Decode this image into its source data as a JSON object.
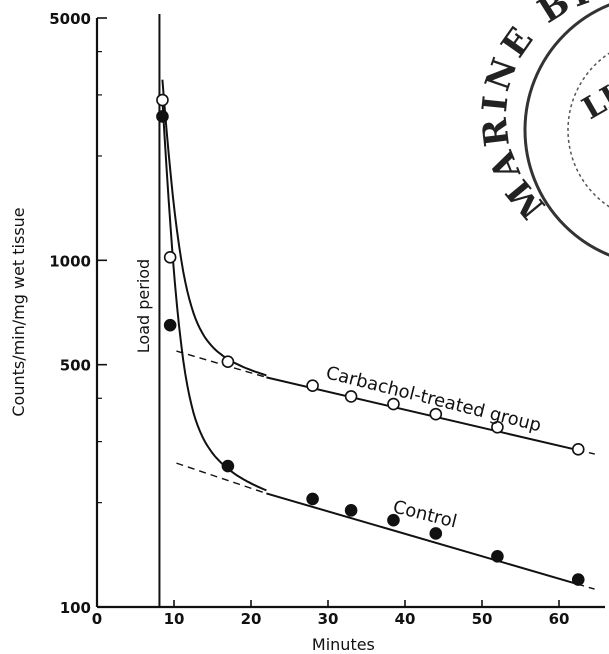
{
  "chart_data": {
    "type": "scatter",
    "title": "",
    "xlabel": "Minutes",
    "ylabel": "Counts/min/mg wet tissue",
    "x_ticks": [
      0,
      10,
      20,
      30,
      40,
      50,
      60
    ],
    "y_ticks": [
      100,
      500,
      1000,
      5000
    ],
    "xlim": [
      0,
      65
    ],
    "ylim": [
      100,
      5000
    ],
    "y_scale": "log",
    "grid": false,
    "annotations": {
      "load_period": "Load period",
      "load_period_x": 8.5
    },
    "series": [
      {
        "name": "Carbachol-treated group",
        "marker": "open-circle",
        "x": [
          8.5,
          9.5,
          17,
          28,
          33,
          38.5,
          44,
          52,
          62.5
        ],
        "y": [
          2900,
          1020,
          510,
          435,
          405,
          385,
          360,
          330,
          285
        ],
        "extrapolated_line": {
          "x": [
            8.5,
            65
          ],
          "y": [
            540,
            275
          ]
        }
      },
      {
        "name": "Control",
        "marker": "filled-circle",
        "x": [
          8.5,
          9.5,
          17,
          28,
          33,
          38.5,
          44,
          52,
          62.5
        ],
        "y": [
          2600,
          650,
          255,
          205,
          190,
          178,
          163,
          140,
          120
        ],
        "extrapolated_line": {
          "x": [
            8.5,
            65
          ],
          "y": [
            260,
            112
          ]
        }
      }
    ]
  },
  "stamp": {
    "top": "MARINE BIOLOGICAL",
    "inner": "LIBRARY"
  }
}
